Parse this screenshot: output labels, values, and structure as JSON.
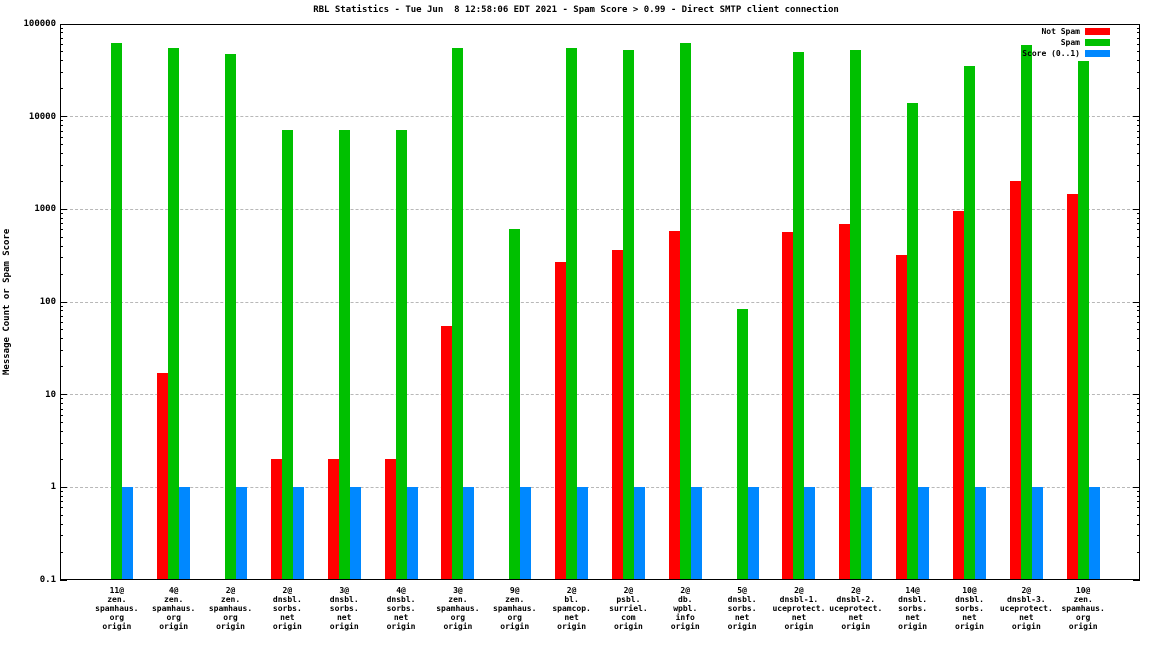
{
  "chart_data": {
    "type": "bar",
    "title": "RBL Statistics - Tue Jun  8 12:58:06 EDT 2021 - Spam Score > 0.99 - Direct SMTP client connection",
    "xlabel": "",
    "ylabel": "Message Count or Spam Score",
    "y_scale": "log",
    "ylim": [
      0.1,
      100000
    ],
    "yticks": [
      "0.1",
      "1",
      "10",
      "100",
      "1000",
      "10000",
      "100000"
    ],
    "grid": "horizontal dashed lines at each decade",
    "legend_position": "top-right",
    "categories": [
      [
        "11@",
        "zen.",
        "spamhaus.",
        "org",
        "origin"
      ],
      [
        "4@",
        "zen.",
        "spamhaus.",
        "org",
        "origin"
      ],
      [
        "2@",
        "zen.",
        "spamhaus.",
        "org",
        "origin"
      ],
      [
        "2@",
        "dnsbl.",
        "sorbs.",
        "net",
        "origin"
      ],
      [
        "3@",
        "dnsbl.",
        "sorbs.",
        "net",
        "origin"
      ],
      [
        "4@",
        "dnsbl.",
        "sorbs.",
        "net",
        "origin"
      ],
      [
        "3@",
        "zen.",
        "spamhaus.",
        "org",
        "origin"
      ],
      [
        "9@",
        "zen.",
        "spamhaus.",
        "org",
        "origin"
      ],
      [
        "2@",
        "bl.",
        "spamcop.",
        "net",
        "origin"
      ],
      [
        "2@",
        "psbl.",
        "surriel.",
        "com",
        "origin"
      ],
      [
        "2@",
        "db.",
        "wpbl.",
        "info",
        "origin"
      ],
      [
        "5@",
        "dnsbl.",
        "sorbs.",
        "net",
        "origin"
      ],
      [
        "2@",
        "dnsbl-1.",
        "uceprotect.",
        "net",
        "origin"
      ],
      [
        "2@",
        "dnsbl-2.",
        "uceprotect.",
        "net",
        "origin"
      ],
      [
        "14@",
        "dnsbl.",
        "sorbs.",
        "net",
        "origin"
      ],
      [
        "10@",
        "dnsbl.",
        "sorbs.",
        "net",
        "origin"
      ],
      [
        "2@",
        "dnsbl-3.",
        "uceprotect.",
        "net",
        "origin"
      ],
      [
        "10@",
        "zen.",
        "spamhaus.",
        "org",
        "origin"
      ]
    ],
    "series": [
      {
        "name": "Not Spam",
        "color": "#ff0000",
        "values": [
          0,
          17,
          0,
          2,
          2,
          2,
          55,
          0,
          270,
          360,
          580,
          0,
          570,
          700,
          320,
          950,
          2000,
          1450
        ]
      },
      {
        "name": "Spam",
        "color": "#00c000",
        "values": [
          62000,
          55000,
          48000,
          7200,
          7200,
          7200,
          55000,
          620,
          55000,
          53000,
          62000,
          85,
          50000,
          53000,
          14000,
          35000,
          60000,
          40000
        ]
      },
      {
        "name": "Score (0..1)",
        "color": "#0088ff",
        "values": [
          1,
          1,
          1,
          1,
          1,
          1,
          1,
          1,
          1,
          1,
          1,
          1,
          1,
          1,
          1,
          1,
          1,
          1
        ]
      }
    ]
  }
}
